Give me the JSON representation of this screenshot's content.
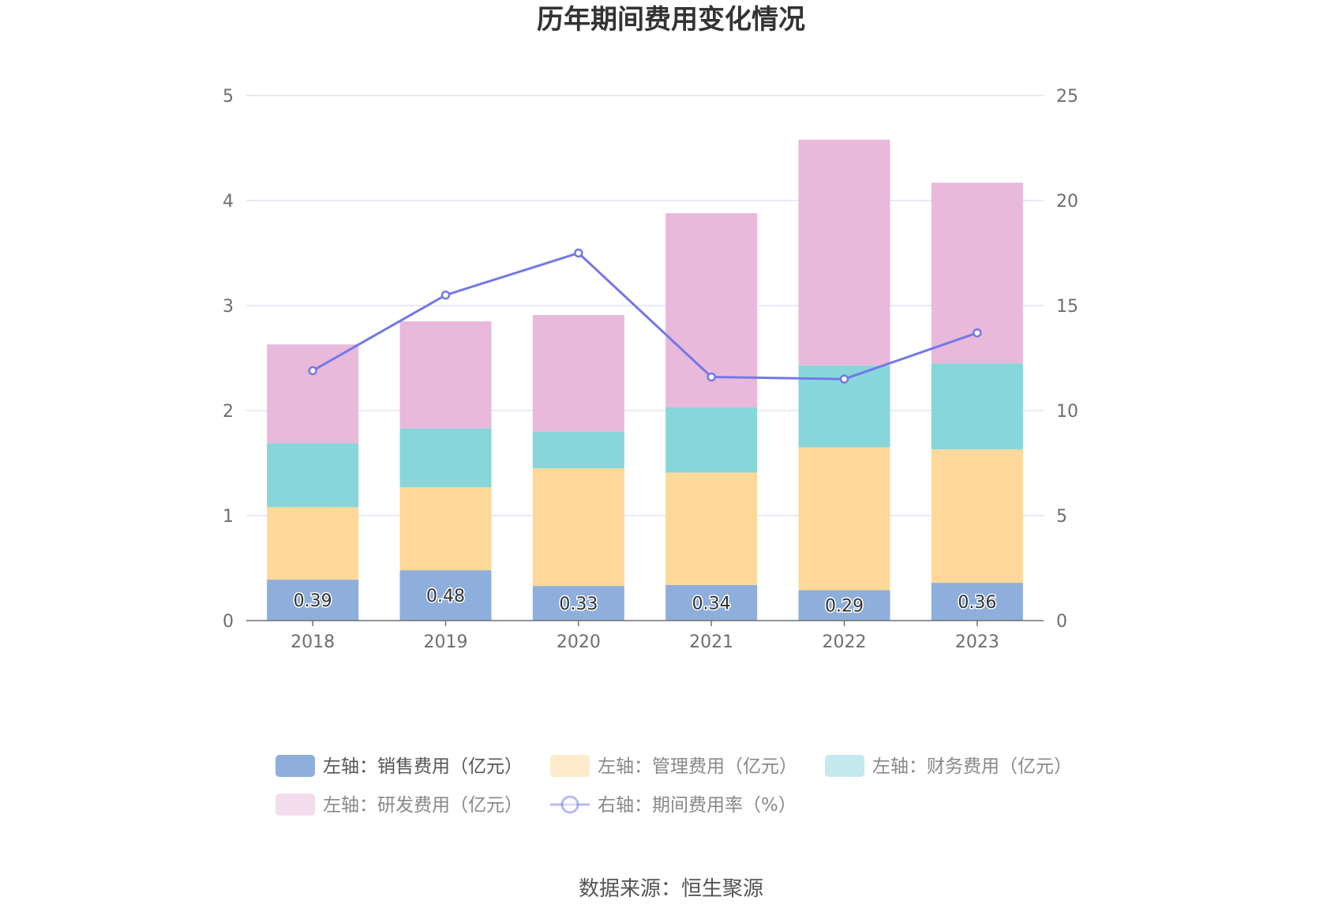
{
  "chart_data": {
    "type": "bar",
    "stacked": true,
    "title": "历年期间费用变化情况",
    "categories": [
      "2018",
      "2019",
      "2020",
      "2021",
      "2022",
      "2023"
    ],
    "left_axis": {
      "ylim": [
        0,
        5
      ],
      "ticks": [
        "0",
        "1",
        "2",
        "3",
        "4",
        "5"
      ]
    },
    "right_axis": {
      "ylim": [
        0,
        25
      ],
      "ticks": [
        "0",
        "5",
        "10",
        "15",
        "20",
        "25"
      ]
    },
    "series": [
      {
        "name": "左轴：销售费用（亿元）",
        "axis": "left",
        "kind": "bar",
        "color": "#8eaedb",
        "values": [
          0.39,
          0.48,
          0.33,
          0.34,
          0.29,
          0.36
        ],
        "labels": [
          "0.39",
          "0.48",
          "0.33",
          "0.34",
          "0.29",
          "0.36"
        ]
      },
      {
        "name": "左轴：管理费用（亿元）",
        "axis": "left",
        "kind": "bar",
        "color": "#fed898",
        "values": [
          0.69,
          0.79,
          1.12,
          1.07,
          1.36,
          1.27
        ]
      },
      {
        "name": "左轴：财务费用（亿元）",
        "axis": "left",
        "kind": "bar",
        "color": "#87d6da",
        "values": [
          0.61,
          0.56,
          0.35,
          0.62,
          0.78,
          0.82
        ]
      },
      {
        "name": "左轴：研发费用（亿元）",
        "axis": "left",
        "kind": "bar",
        "color": "#e8b9da",
        "values": [
          0.94,
          1.02,
          1.11,
          1.85,
          2.15,
          1.72
        ]
      },
      {
        "name": "右轴：期间费用率（%）",
        "axis": "right",
        "kind": "line",
        "color": "#7378e8",
        "values": [
          11.9,
          15.5,
          17.5,
          11.6,
          11.5,
          13.7
        ]
      }
    ],
    "grid": true,
    "legend_position": "bottom"
  },
  "source": "数据来源：恒生聚源"
}
